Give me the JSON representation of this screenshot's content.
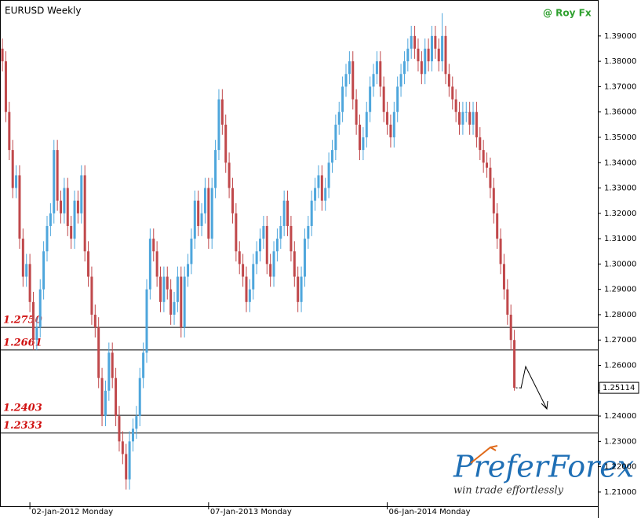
{
  "chart_data": {
    "type": "candlestick",
    "title": "EURUSD Weekly",
    "credit": "@ Roy Fx",
    "watermark": {
      "brand": "PreferForex",
      "tagline": "win trade effortlessly"
    },
    "up_color": "#4ea6dc",
    "down_color": "#c0484b",
    "xlim": [
      -0.7,
      173.3
    ],
    "xticks": [
      {
        "value": 8,
        "label": "02-Jan-2012 Monday"
      },
      {
        "value": 60,
        "label": "07-Jan-2013 Monday"
      },
      {
        "value": 112,
        "label": "06-Jan-2014 Monday"
      }
    ],
    "ylim": [
      1.2044,
      1.4042
    ],
    "yticks": [
      {
        "value": 1.21,
        "label": "1.21000"
      },
      {
        "value": 1.22,
        "label": "1.22000"
      },
      {
        "value": 1.23,
        "label": "1.23000"
      },
      {
        "value": 1.24,
        "label": "1.24000"
      },
      {
        "value": 1.25,
        "label": "1.25000"
      },
      {
        "value": 1.26,
        "label": "1.26000"
      },
      {
        "value": 1.27,
        "label": "1.27000"
      },
      {
        "value": 1.28,
        "label": "1.28000"
      },
      {
        "value": 1.29,
        "label": "1.29000"
      },
      {
        "value": 1.3,
        "label": "1.30000"
      },
      {
        "value": 1.31,
        "label": "1.31000"
      },
      {
        "value": 1.32,
        "label": "1.32000"
      },
      {
        "value": 1.33,
        "label": "1.33000"
      },
      {
        "value": 1.34,
        "label": "1.34000"
      },
      {
        "value": 1.35,
        "label": "1.35000"
      },
      {
        "value": 1.36,
        "label": "1.36000"
      },
      {
        "value": 1.37,
        "label": "1.37000"
      },
      {
        "value": 1.38,
        "label": "1.38000"
      },
      {
        "value": 1.39,
        "label": "1.39000"
      }
    ],
    "levels": [
      {
        "value": 1.275,
        "label": "1.2750"
      },
      {
        "value": 1.2661,
        "label": "1.2661"
      },
      {
        "value": 1.2403,
        "label": "1.2403"
      },
      {
        "value": 1.2333,
        "label": "1.2333"
      }
    ],
    "last_label": "1.25114",
    "open": [
      1.385,
      1.38,
      1.36,
      1.345,
      1.33,
      1.335,
      1.31,
      1.295,
      1.3,
      1.285,
      1.27,
      1.275,
      1.29,
      1.305,
      1.315,
      1.32,
      1.345,
      1.325,
      1.32,
      1.33,
      1.315,
      1.31,
      1.325,
      1.32,
      1.335,
      1.305,
      1.295,
      1.28,
      1.275,
      1.255,
      1.24,
      1.25,
      1.265,
      1.255,
      1.24,
      1.23,
      1.225,
      1.215,
      1.23,
      1.235,
      1.24,
      1.255,
      1.265,
      1.29,
      1.31,
      1.305,
      1.295,
      1.285,
      1.295,
      1.29,
      1.28,
      1.285,
      1.295,
      1.275,
      1.295,
      1.3,
      1.31,
      1.325,
      1.315,
      1.32,
      1.33,
      1.31,
      1.33,
      1.345,
      1.365,
      1.355,
      1.34,
      1.33,
      1.32,
      1.305,
      1.3,
      1.295,
      1.285,
      1.29,
      1.3,
      1.305,
      1.31,
      1.315,
      1.3,
      1.295,
      1.305,
      1.31,
      1.315,
      1.325,
      1.315,
      1.305,
      1.295,
      1.285,
      1.295,
      1.31,
      1.315,
      1.325,
      1.33,
      1.335,
      1.325,
      1.33,
      1.34,
      1.345,
      1.355,
      1.36,
      1.37,
      1.375,
      1.38,
      1.365,
      1.355,
      1.345,
      1.35,
      1.36,
      1.37,
      1.375,
      1.38,
      1.37,
      1.36,
      1.355,
      1.35,
      1.36,
      1.37,
      1.375,
      1.38,
      1.385,
      1.39,
      1.385,
      1.38,
      1.375,
      1.385,
      1.38,
      1.39,
      1.385,
      1.38,
      1.39,
      1.375,
      1.37,
      1.365,
      1.36,
      1.355,
      1.36,
      1.36,
      1.355,
      1.36,
      1.35,
      1.345,
      1.34,
      1.338,
      1.33,
      1.32,
      1.31,
      1.3,
      1.29,
      1.28,
      1.27
    ],
    "high": [
      1.389,
      1.384,
      1.364,
      1.349,
      1.339,
      1.339,
      1.314,
      1.304,
      1.304,
      1.289,
      1.279,
      1.294,
      1.309,
      1.319,
      1.324,
      1.349,
      1.349,
      1.329,
      1.334,
      1.334,
      1.319,
      1.329,
      1.329,
      1.339,
      1.339,
      1.309,
      1.299,
      1.284,
      1.279,
      1.259,
      1.254,
      1.269,
      1.269,
      1.259,
      1.244,
      1.234,
      1.229,
      1.234,
      1.239,
      1.244,
      1.259,
      1.269,
      1.294,
      1.314,
      1.314,
      1.309,
      1.299,
      1.299,
      1.299,
      1.294,
      1.289,
      1.299,
      1.299,
      1.299,
      1.304,
      1.314,
      1.329,
      1.329,
      1.324,
      1.334,
      1.334,
      1.334,
      1.349,
      1.369,
      1.369,
      1.359,
      1.344,
      1.334,
      1.324,
      1.309,
      1.304,
      1.299,
      1.294,
      1.304,
      1.309,
      1.314,
      1.319,
      1.319,
      1.304,
      1.309,
      1.314,
      1.319,
      1.329,
      1.329,
      1.319,
      1.309,
      1.299,
      1.299,
      1.314,
      1.319,
      1.329,
      1.334,
      1.339,
      1.339,
      1.334,
      1.344,
      1.349,
      1.359,
      1.364,
      1.374,
      1.379,
      1.384,
      1.384,
      1.369,
      1.359,
      1.354,
      1.364,
      1.374,
      1.379,
      1.384,
      1.384,
      1.374,
      1.364,
      1.359,
      1.364,
      1.374,
      1.379,
      1.384,
      1.389,
      1.394,
      1.394,
      1.389,
      1.384,
      1.389,
      1.389,
      1.394,
      1.394,
      1.389,
      1.399,
      1.394,
      1.379,
      1.374,
      1.369,
      1.364,
      1.364,
      1.364,
      1.364,
      1.364,
      1.364,
      1.354,
      1.349,
      1.344,
      1.342,
      1.334,
      1.324,
      1.314,
      1.304,
      1.294,
      1.284,
      1.274
    ],
    "low": [
      1.376,
      1.356,
      1.341,
      1.326,
      1.326,
      1.306,
      1.291,
      1.291,
      1.281,
      1.266,
      1.266,
      1.271,
      1.286,
      1.301,
      1.311,
      1.316,
      1.321,
      1.316,
      1.316,
      1.311,
      1.306,
      1.306,
      1.316,
      1.316,
      1.301,
      1.291,
      1.276,
      1.271,
      1.251,
      1.236,
      1.236,
      1.246,
      1.251,
      1.236,
      1.226,
      1.221,
      1.211,
      1.211,
      1.226,
      1.231,
      1.236,
      1.251,
      1.261,
      1.286,
      1.301,
      1.291,
      1.281,
      1.281,
      1.286,
      1.276,
      1.276,
      1.281,
      1.271,
      1.271,
      1.291,
      1.296,
      1.306,
      1.311,
      1.311,
      1.316,
      1.306,
      1.306,
      1.326,
      1.341,
      1.351,
      1.336,
      1.326,
      1.316,
      1.301,
      1.296,
      1.291,
      1.281,
      1.281,
      1.286,
      1.296,
      1.301,
      1.306,
      1.296,
      1.291,
      1.291,
      1.301,
      1.306,
      1.311,
      1.311,
      1.301,
      1.291,
      1.281,
      1.281,
      1.291,
      1.306,
      1.311,
      1.321,
      1.326,
      1.321,
      1.321,
      1.326,
      1.336,
      1.341,
      1.351,
      1.356,
      1.366,
      1.371,
      1.361,
      1.351,
      1.341,
      1.341,
      1.346,
      1.356,
      1.366,
      1.371,
      1.366,
      1.356,
      1.351,
      1.346,
      1.346,
      1.356,
      1.366,
      1.371,
      1.376,
      1.381,
      1.381,
      1.376,
      1.371,
      1.371,
      1.376,
      1.376,
      1.381,
      1.376,
      1.376,
      1.371,
      1.366,
      1.361,
      1.356,
      1.351,
      1.351,
      1.356,
      1.351,
      1.351,
      1.346,
      1.341,
      1.336,
      1.334,
      1.326,
      1.316,
      1.306,
      1.296,
      1.286,
      1.276,
      1.266,
      1.25
    ],
    "close": [
      1.38,
      1.36,
      1.345,
      1.33,
      1.335,
      1.31,
      1.295,
      1.3,
      1.285,
      1.27,
      1.275,
      1.29,
      1.305,
      1.315,
      1.32,
      1.345,
      1.325,
      1.32,
      1.33,
      1.315,
      1.31,
      1.325,
      1.32,
      1.335,
      1.305,
      1.295,
      1.28,
      1.275,
      1.255,
      1.24,
      1.25,
      1.265,
      1.255,
      1.24,
      1.23,
      1.225,
      1.215,
      1.23,
      1.235,
      1.24,
      1.255,
      1.265,
      1.29,
      1.31,
      1.305,
      1.295,
      1.285,
      1.295,
      1.29,
      1.28,
      1.285,
      1.295,
      1.275,
      1.295,
      1.3,
      1.31,
      1.325,
      1.315,
      1.32,
      1.33,
      1.31,
      1.33,
      1.345,
      1.365,
      1.355,
      1.34,
      1.33,
      1.32,
      1.305,
      1.3,
      1.295,
      1.285,
      1.29,
      1.3,
      1.305,
      1.31,
      1.315,
      1.3,
      1.295,
      1.305,
      1.31,
      1.315,
      1.325,
      1.315,
      1.305,
      1.295,
      1.285,
      1.295,
      1.31,
      1.315,
      1.325,
      1.33,
      1.335,
      1.325,
      1.33,
      1.34,
      1.345,
      1.355,
      1.36,
      1.37,
      1.375,
      1.38,
      1.365,
      1.355,
      1.345,
      1.35,
      1.36,
      1.37,
      1.375,
      1.38,
      1.37,
      1.36,
      1.355,
      1.35,
      1.36,
      1.37,
      1.375,
      1.38,
      1.385,
      1.39,
      1.385,
      1.38,
      1.375,
      1.385,
      1.38,
      1.39,
      1.385,
      1.38,
      1.39,
      1.375,
      1.37,
      1.365,
      1.36,
      1.355,
      1.36,
      1.36,
      1.355,
      1.36,
      1.35,
      1.345,
      1.34,
      1.338,
      1.33,
      1.32,
      1.31,
      1.3,
      1.29,
      1.28,
      1.27,
      1.25114
    ]
  }
}
